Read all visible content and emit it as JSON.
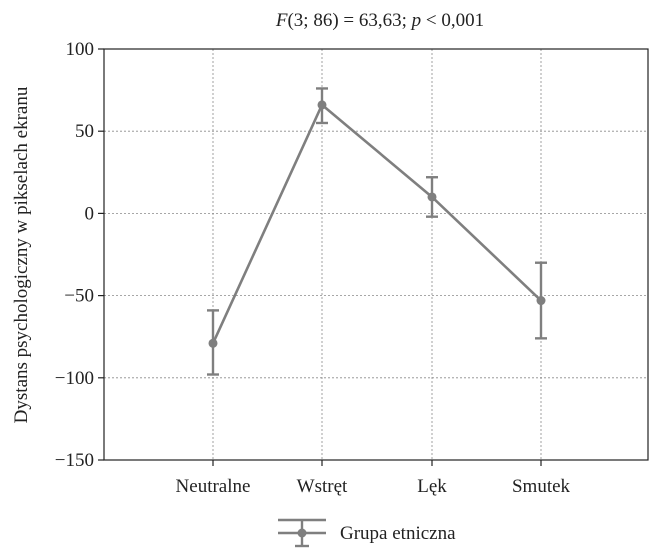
{
  "chart_data": {
    "type": "line",
    "title_parts": {
      "f_symbol": "F",
      "f_args": "(3; 86) = 63,63; ",
      "p_symbol": "p",
      "p_rest": " < 0,001"
    },
    "xlabel": "",
    "ylabel": "Dystans psychologiczny w pikselach ekranu",
    "categories": [
      "Neutralne",
      "Wstręt",
      "Lęk",
      "Smutek"
    ],
    "ylim": [
      -150,
      100
    ],
    "yticks": [
      100,
      50,
      0,
      -50,
      -100,
      -150
    ],
    "ytick_labels": [
      "100",
      "50",
      "0",
      "−50",
      "−100",
      "−150"
    ],
    "grid": true,
    "legend_position": "bottom-center",
    "series": [
      {
        "name": "Grupa etniczna",
        "values": [
          -79,
          66,
          10,
          -53
        ],
        "error_low": [
          -98,
          55,
          -2,
          -76
        ],
        "error_high": [
          -59,
          76,
          22,
          -30
        ],
        "color": "#7f7f7f"
      }
    ]
  }
}
